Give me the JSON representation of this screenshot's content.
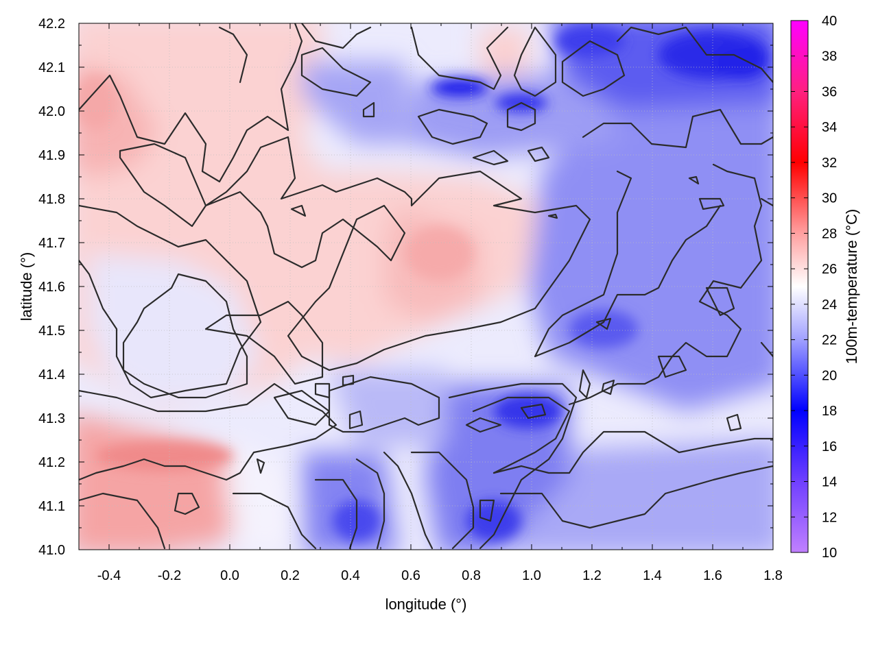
{
  "chart_data": {
    "type": "heatmap",
    "title": "",
    "xlabel": "longitude (°)",
    "ylabel": "latitude (°)",
    "colorbar_label": "100m-temperature (°C)",
    "xlim": [
      -0.5,
      1.8
    ],
    "ylim": [
      41.0,
      42.2
    ],
    "clim": [
      10,
      40
    ],
    "x_ticks": [
      -0.4,
      -0.2,
      0.0,
      0.2,
      0.4,
      0.6,
      0.8,
      1.0,
      1.2,
      1.4,
      1.6,
      1.8
    ],
    "x_tick_labels": [
      "-0.4",
      "-0.2",
      "0.0",
      "0.2",
      "0.4",
      "0.6",
      "0.8",
      "1.0",
      "1.2",
      "1.4",
      "1.6",
      "1.8"
    ],
    "y_ticks": [
      41.0,
      41.1,
      41.2,
      41.3,
      41.4,
      41.5,
      41.6,
      41.7,
      41.8,
      41.9,
      42.0,
      42.1,
      42.2
    ],
    "y_tick_labels": [
      "41.0",
      "41.1",
      "41.2",
      "41.3",
      "41.4",
      "41.5",
      "41.6",
      "41.7",
      "41.8",
      "41.9",
      "42.0",
      "42.1",
      "42.2"
    ],
    "colorbar_ticks": [
      10,
      12,
      14,
      16,
      18,
      20,
      22,
      24,
      26,
      28,
      30,
      32,
      34,
      36,
      38,
      40
    ],
    "colorbar_tick_labels": [
      "10",
      "12",
      "14",
      "16",
      "18",
      "20",
      "22",
      "24",
      "26",
      "28",
      "30",
      "32",
      "34",
      "36",
      "38",
      "40"
    ],
    "colormap": [
      {
        "value": 10,
        "color": "#c080ff"
      },
      {
        "value": 14,
        "color": "#7040ff"
      },
      {
        "value": 18,
        "color": "#0000ff"
      },
      {
        "value": 22,
        "color": "#a0a0ff"
      },
      {
        "value": 25,
        "color": "#ffffff"
      },
      {
        "value": 28,
        "color": "#ffa0a0"
      },
      {
        "value": 32,
        "color": "#ff0000"
      },
      {
        "value": 36,
        "color": "#ff2080"
      },
      {
        "value": 40,
        "color": "#ff00ff"
      }
    ],
    "grid": true,
    "field_samples": [
      {
        "lon": -0.45,
        "lat": 41.95,
        "t": 26.8
      },
      {
        "lon": -0.35,
        "lat": 41.15,
        "t": 28.5
      },
      {
        "lon": -0.2,
        "lat": 41.2,
        "t": 29.0
      },
      {
        "lon": -0.1,
        "lat": 41.45,
        "t": 24.2
      },
      {
        "lon": 0.0,
        "lat": 41.8,
        "t": 26.5
      },
      {
        "lon": 0.2,
        "lat": 42.1,
        "t": 25.5
      },
      {
        "lon": 0.45,
        "lat": 41.15,
        "t": 17.5
      },
      {
        "lon": 0.55,
        "lat": 41.85,
        "t": 26.5
      },
      {
        "lon": 0.7,
        "lat": 41.65,
        "t": 27.5
      },
      {
        "lon": 0.75,
        "lat": 42.05,
        "t": 17.0
      },
      {
        "lon": 0.9,
        "lat": 41.25,
        "t": 18.0
      },
      {
        "lon": 1.0,
        "lat": 41.3,
        "t": 17.0
      },
      {
        "lon": 1.3,
        "lat": 41.6,
        "t": 20.5
      },
      {
        "lon": 1.5,
        "lat": 42.15,
        "t": 16.0
      },
      {
        "lon": 1.6,
        "lat": 41.1,
        "t": 22.5
      }
    ]
  }
}
